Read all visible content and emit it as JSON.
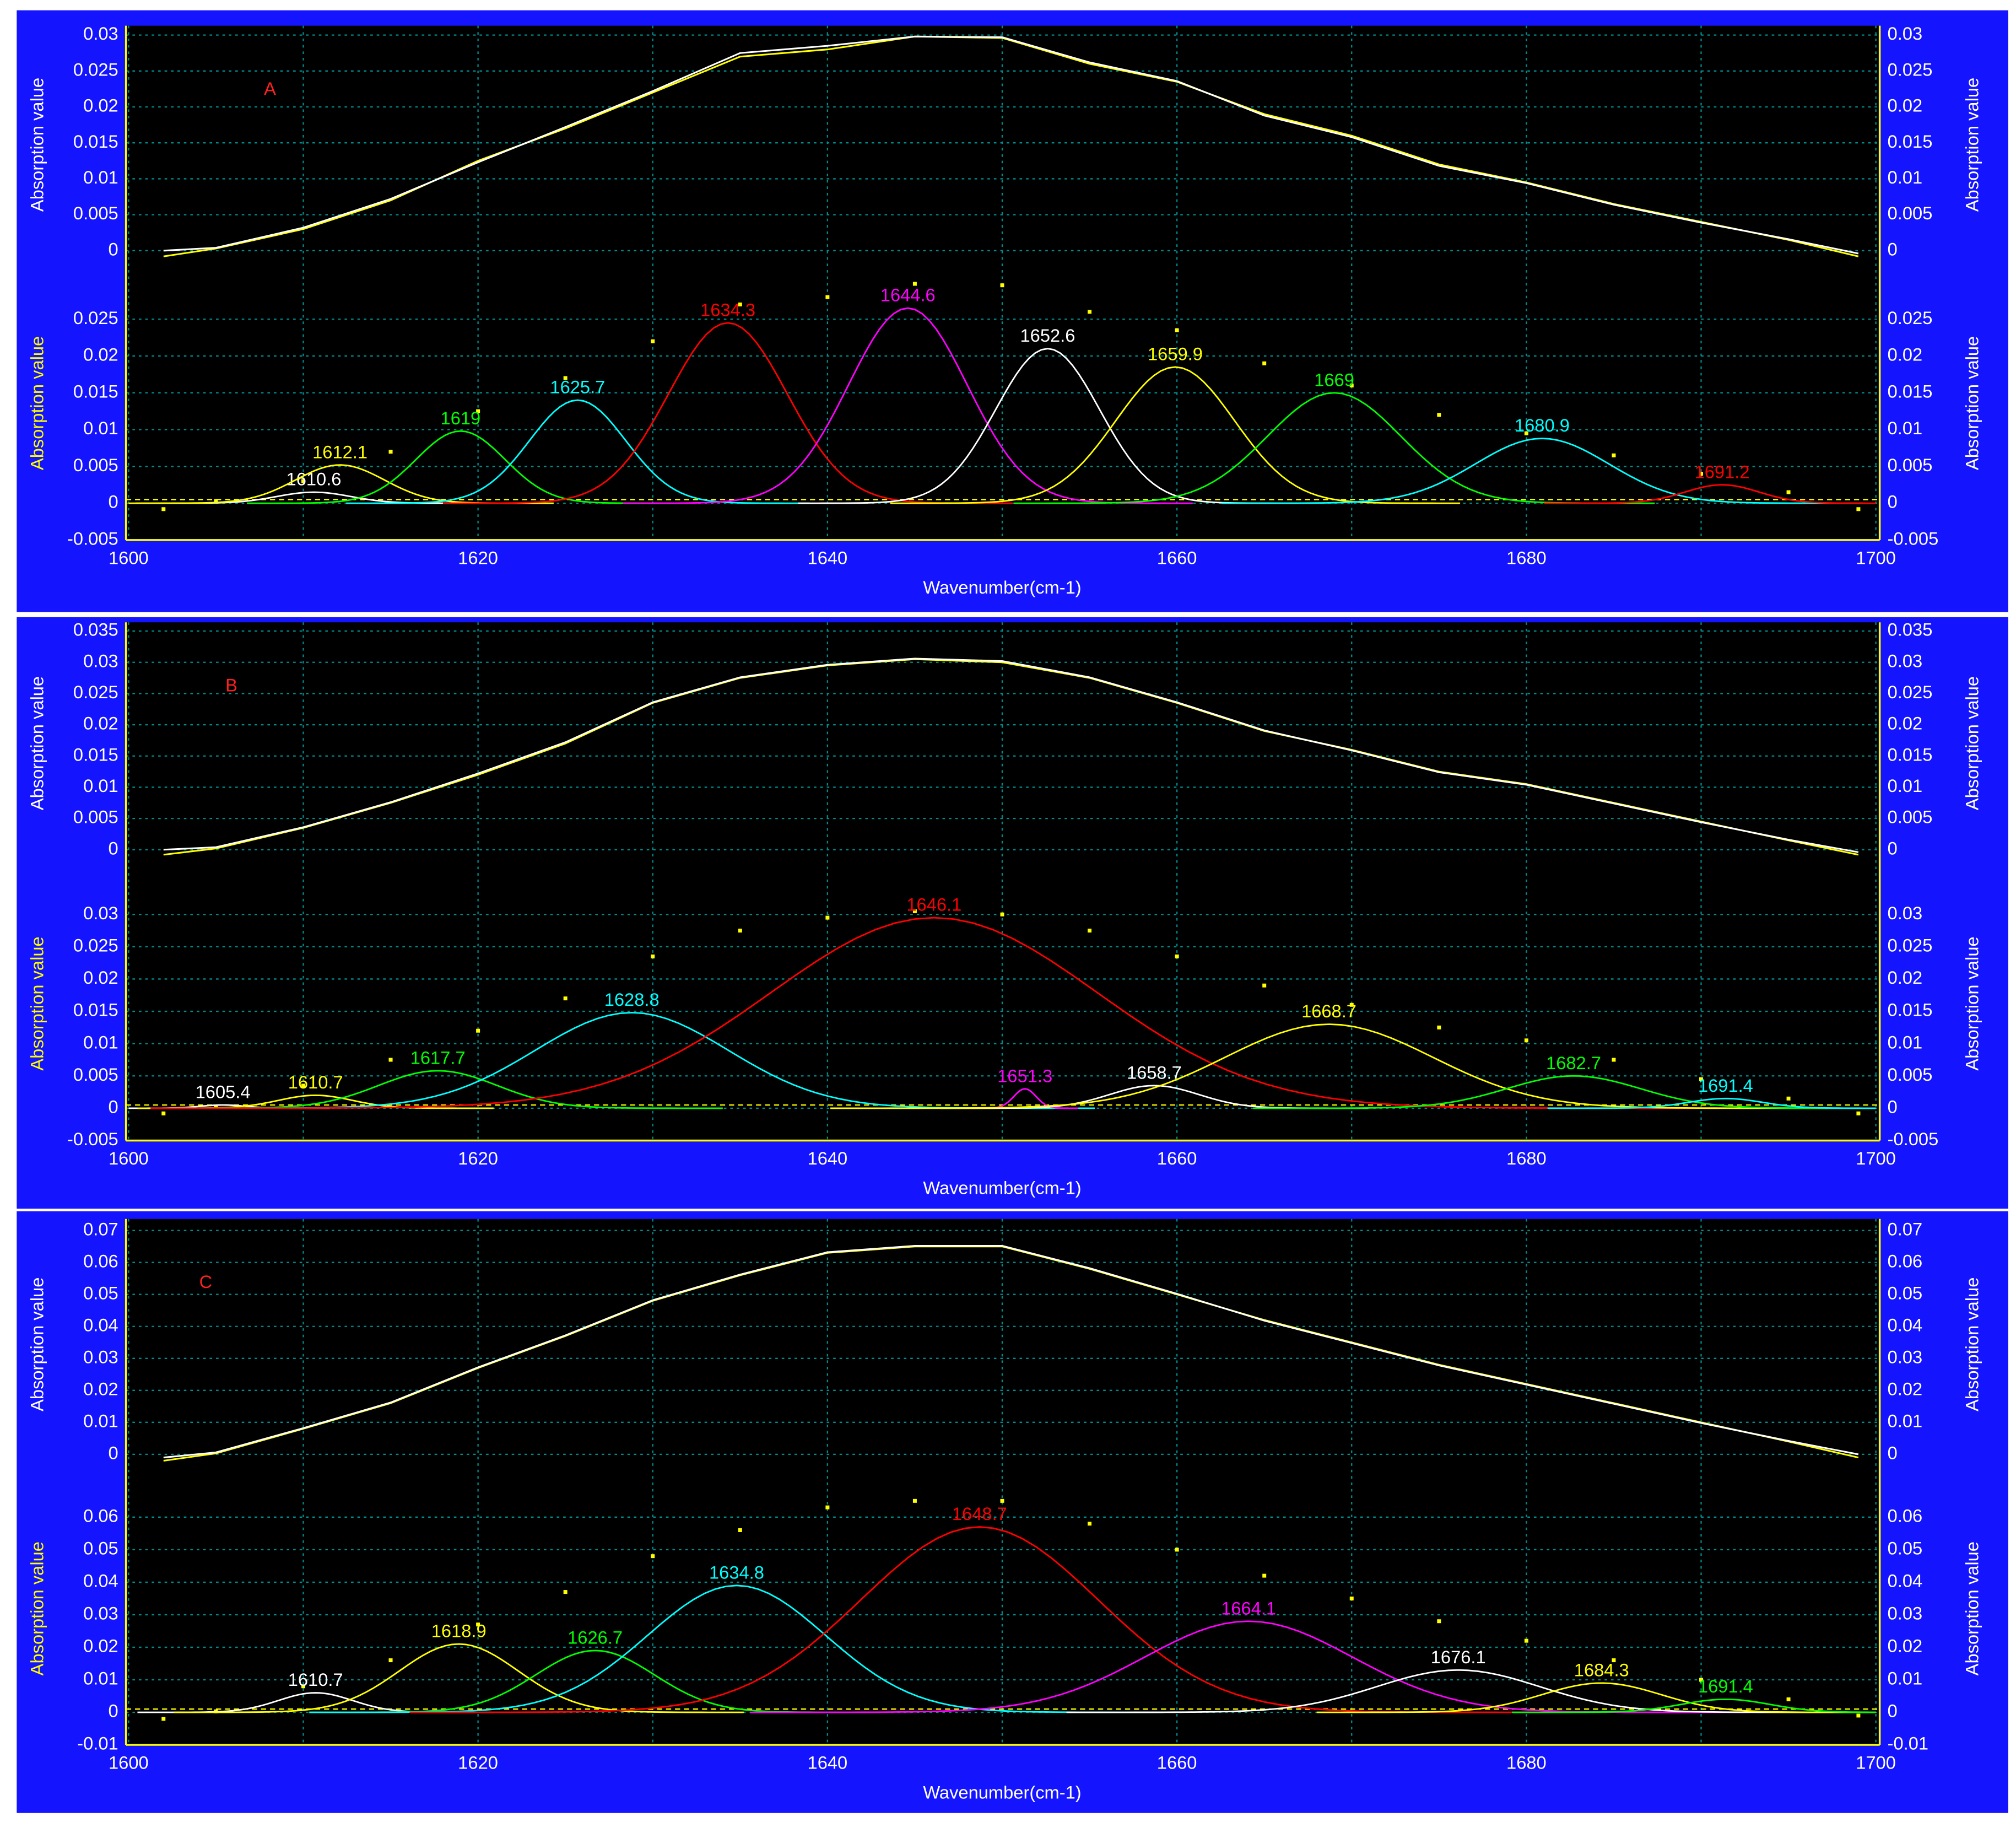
{
  "chart_data": [
    {
      "type": "line",
      "label": "A",
      "xlabel": "Wavenumber(cm-1)",
      "ylabel": "Absorption value",
      "xlim": [
        1600,
        1700
      ],
      "xticks": [
        1600,
        1620,
        1640,
        1660,
        1680,
        1700
      ],
      "xgrid": [
        1610,
        1630,
        1650,
        1670,
        1690
      ],
      "ylim": [
        -0.0018,
        0.0313
      ],
      "yticks": [
        0,
        0.005,
        0.01,
        0.015,
        0.02,
        0.025,
        0.03
      ],
      "x": [
        1602,
        1605,
        1610,
        1615,
        1620,
        1625,
        1630,
        1635,
        1640,
        1645,
        1650,
        1655,
        1660,
        1665,
        1670,
        1675,
        1680,
        1685,
        1690,
        1695,
        1699
      ],
      "series": [
        {
          "color": "#ffff00",
          "values": [
            -0.0008,
            0.0003,
            0.003,
            0.007,
            0.0125,
            0.017,
            0.022,
            0.027,
            0.028,
            0.0298,
            0.0296,
            0.026,
            0.0235,
            0.019,
            0.016,
            0.012,
            0.0095,
            0.0065,
            0.004,
            0.0015,
            -0.0008
          ]
        },
        {
          "color": "#ffffff",
          "values": [
            0,
            0.0004,
            0.0032,
            0.0072,
            0.0123,
            0.0172,
            0.0222,
            0.0275,
            0.0285,
            0.0298,
            0.0297,
            0.0262,
            0.0236,
            0.0188,
            0.0158,
            0.0118,
            0.0094,
            0.0064,
            0.0039,
            0.0016,
            -0.0004
          ]
        }
      ],
      "components": {
        "ylim": [
          -0.005,
          0.0322
        ],
        "yticks": [
          -0.005,
          0,
          0.005,
          0.01,
          0.015,
          0.02,
          0.025
        ],
        "baseline": 0.0005,
        "peaks": [
          {
            "center": 1610.6,
            "height": 0.0015,
            "fwhm": 5,
            "color": "#ffffff"
          },
          {
            "center": 1612.1,
            "height": 0.0052,
            "fwhm": 6,
            "color": "#ffff00"
          },
          {
            "center": 1619,
            "height": 0.0098,
            "fwhm": 6,
            "color": "#00ff00"
          },
          {
            "center": 1625.7,
            "height": 0.014,
            "fwhm": 6.5,
            "color": "#00ffff"
          },
          {
            "center": 1634.3,
            "height": 0.0245,
            "fwhm": 8,
            "color": "#ff0000"
          },
          {
            "center": 1644.6,
            "height": 0.0265,
            "fwhm": 8,
            "color": "#ff00ff"
          },
          {
            "center": 1652.6,
            "height": 0.021,
            "fwhm": 7,
            "color": "#ffffff"
          },
          {
            "center": 1659.9,
            "height": 0.0185,
            "fwhm": 8,
            "color": "#ffff00"
          },
          {
            "center": 1669,
            "height": 0.015,
            "fwhm": 9,
            "color": "#00ff00"
          },
          {
            "center": 1680.9,
            "height": 0.0088,
            "fwhm": 9,
            "color": "#00ffff"
          },
          {
            "center": 1691.2,
            "height": 0.0025,
            "fwhm": 5,
            "color": "#ff0000"
          }
        ]
      }
    },
    {
      "type": "line",
      "label": "B",
      "xlabel": "Wavenumber(cm-1)",
      "ylabel": "Absorption value",
      "xlim": [
        1600,
        1700
      ],
      "xticks": [
        1600,
        1620,
        1640,
        1660,
        1680,
        1700
      ],
      "xgrid": [
        1610,
        1630,
        1650,
        1670,
        1690
      ],
      "ylim": [
        -0.0023,
        0.0364
      ],
      "yticks": [
        0,
        0.005,
        0.01,
        0.015,
        0.02,
        0.025,
        0.03,
        0.035
      ],
      "x": [
        1602,
        1605,
        1610,
        1615,
        1620,
        1625,
        1630,
        1635,
        1640,
        1645,
        1650,
        1655,
        1660,
        1665,
        1670,
        1675,
        1680,
        1685,
        1690,
        1695,
        1699
      ],
      "series": [
        {
          "color": "#ffff00",
          "values": [
            -0.0008,
            0.0002,
            0.0035,
            0.0075,
            0.012,
            0.017,
            0.0235,
            0.0275,
            0.0295,
            0.0305,
            0.03,
            0.0275,
            0.0235,
            0.019,
            0.016,
            0.0125,
            0.0105,
            0.0075,
            0.0045,
            0.0015,
            -0.0008
          ]
        },
        {
          "color": "#ffffff",
          "values": [
            0,
            0.0004,
            0.0036,
            0.0076,
            0.0122,
            0.0172,
            0.0236,
            0.0276,
            0.0296,
            0.0306,
            0.0302,
            0.0276,
            0.0236,
            0.0191,
            0.0159,
            0.0124,
            0.0104,
            0.0074,
            0.0044,
            0.0016,
            -0.0004
          ]
        }
      ],
      "components": {
        "ylim": [
          -0.005,
          0.0374
        ],
        "yticks": [
          -0.005,
          0,
          0.005,
          0.01,
          0.015,
          0.02,
          0.025,
          0.03
        ],
        "baseline": 0.0005,
        "peaks": [
          {
            "center": 1605.4,
            "height": 0.0005,
            "fwhm": 3,
            "color": "#ffffff"
          },
          {
            "center": 1610.7,
            "height": 0.002,
            "fwhm": 5,
            "color": "#ffff00"
          },
          {
            "center": 1617.7,
            "height": 0.0058,
            "fwhm": 8,
            "color": "#00ff00"
          },
          {
            "center": 1628.8,
            "height": 0.0148,
            "fwhm": 13,
            "color": "#00ffff"
          },
          {
            "center": 1646.1,
            "height": 0.0295,
            "fwhm": 22,
            "color": "#ff0000"
          },
          {
            "center": 1651.3,
            "height": 0.003,
            "fwhm": 1.5,
            "color": "#ff00ff"
          },
          {
            "center": 1658.7,
            "height": 0.0035,
            "fwhm": 6,
            "color": "#ffffff"
          },
          {
            "center": 1668.7,
            "height": 0.013,
            "fwhm": 14,
            "color": "#ffff00"
          },
          {
            "center": 1682.7,
            "height": 0.005,
            "fwhm": 9,
            "color": "#00ff00"
          },
          {
            "center": 1691.4,
            "height": 0.0015,
            "fwhm": 5,
            "color": "#00ffff"
          }
        ]
      }
    },
    {
      "type": "line",
      "label": "C",
      "xlabel": "Wavenumber(cm-1)",
      "ylabel": "Absorption value",
      "xlim": [
        1600,
        1700
      ],
      "xticks": [
        1600,
        1620,
        1640,
        1660,
        1680,
        1700
      ],
      "xgrid": [
        1610,
        1630,
        1650,
        1670,
        1690
      ],
      "ylim": [
        -0.0048,
        0.0736
      ],
      "yticks": [
        0,
        0.01,
        0.02,
        0.03,
        0.04,
        0.05,
        0.06,
        0.07
      ],
      "x": [
        1602,
        1605,
        1610,
        1615,
        1620,
        1625,
        1630,
        1635,
        1640,
        1645,
        1650,
        1655,
        1660,
        1665,
        1670,
        1675,
        1680,
        1685,
        1690,
        1695,
        1699
      ],
      "series": [
        {
          "color": "#ffff00",
          "values": [
            -0.002,
            0.0003,
            0.008,
            0.016,
            0.027,
            0.037,
            0.048,
            0.056,
            0.063,
            0.065,
            0.065,
            0.058,
            0.05,
            0.042,
            0.035,
            0.028,
            0.022,
            0.016,
            0.01,
            0.004,
            -0.001
          ]
        },
        {
          "color": "#ffffff",
          "values": [
            -0.001,
            0.0006,
            0.0082,
            0.0162,
            0.0272,
            0.0372,
            0.0482,
            0.0562,
            0.0632,
            0.0652,
            0.0652,
            0.0582,
            0.0502,
            0.0418,
            0.0348,
            0.0278,
            0.0218,
            0.0158,
            0.0098,
            0.0042,
            0
          ]
        }
      ],
      "components": {
        "ylim": [
          -0.01,
          0.0738
        ],
        "yticks": [
          -0.01,
          0,
          0.01,
          0.02,
          0.03,
          0.04,
          0.05,
          0.06
        ],
        "baseline": 0.001,
        "peaks": [
          {
            "center": 1610.7,
            "height": 0.006,
            "fwhm": 5,
            "color": "#ffffff"
          },
          {
            "center": 1618.9,
            "height": 0.021,
            "fwhm": 8,
            "color": "#ffff00"
          },
          {
            "center": 1626.7,
            "height": 0.019,
            "fwhm": 8,
            "color": "#00ff00"
          },
          {
            "center": 1634.8,
            "height": 0.039,
            "fwhm": 12,
            "color": "#00ffff"
          },
          {
            "center": 1648.7,
            "height": 0.057,
            "fwhm": 16,
            "color": "#ff0000"
          },
          {
            "center": 1664.1,
            "height": 0.028,
            "fwhm": 14,
            "color": "#ff00ff"
          },
          {
            "center": 1676.1,
            "height": 0.013,
            "fwhm": 11,
            "color": "#ffffff"
          },
          {
            "center": 1684.3,
            "height": 0.009,
            "fwhm": 8,
            "color": "#ffff00"
          },
          {
            "center": 1691.4,
            "height": 0.004,
            "fwhm": 6,
            "color": "#00ff00"
          }
        ]
      }
    }
  ]
}
